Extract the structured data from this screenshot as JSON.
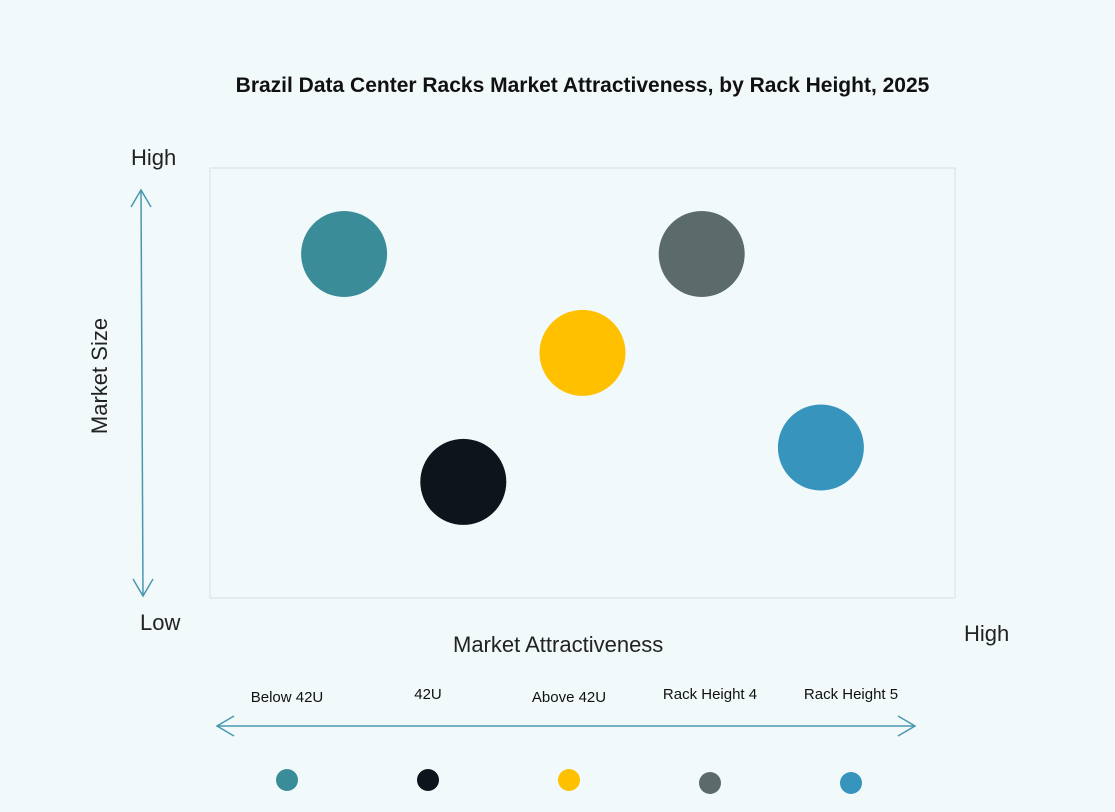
{
  "chart_data": {
    "type": "scatter",
    "title": "Brazil Data Center Racks Market Attractiveness,  by Rack Height, 2025",
    "xlabel": "Market Attractiveness",
    "ylabel": "Market Size",
    "x_low_label": "Low",
    "x_high_label": "High",
    "y_low_label": "Low",
    "y_high_label": "High",
    "xlim": [
      0,
      100
    ],
    "ylim": [
      0,
      100
    ],
    "grid": false,
    "legend_placement": "bottom",
    "series": [
      {
        "name": "Below 42U",
        "x": 18,
        "y": 80,
        "size": 1,
        "color": "#3a8d98"
      },
      {
        "name": "42U",
        "x": 34,
        "y": 27,
        "size": 1,
        "color": "#0d141c"
      },
      {
        "name": "Above 42U",
        "x": 50,
        "y": 57,
        "size": 1,
        "color": "#ffc000"
      },
      {
        "name": "Rack Height 4",
        "x": 66,
        "y": 80,
        "size": 1,
        "color": "#5b6b6b"
      },
      {
        "name": "Rack Height 5",
        "x": 82,
        "y": 35,
        "size": 1,
        "color": "#3795bd"
      }
    ],
    "axis_color": "#4a97b0"
  }
}
